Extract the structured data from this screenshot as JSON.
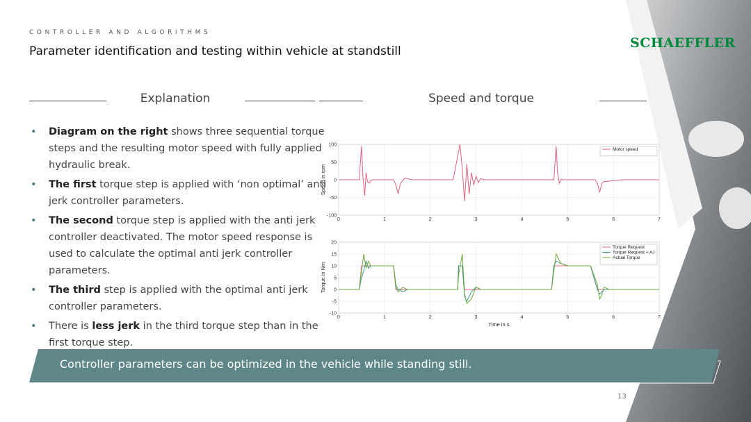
{
  "header": {
    "section": "CONTROLLER AND ALGORITHMS",
    "title": "Parameter identification and testing within vehicle at standstill",
    "logo": "SCHAEFFLER"
  },
  "left_heading": "Explanation",
  "right_heading": "Speed and torque",
  "bullets": [
    {
      "segments": [
        {
          "text": "Diagram on the right",
          "bold": true
        },
        {
          "text": " shows three sequential torque steps and the resulting motor speed with fully applied hydraulic break.",
          "bold": false
        }
      ]
    },
    {
      "segments": [
        {
          "text": "The first",
          "bold": true
        },
        {
          "text": " torque step is applied with ‘non optimal’ anti jerk controller parameters.",
          "bold": false
        }
      ]
    },
    {
      "segments": [
        {
          "text": "The second",
          "bold": true
        },
        {
          "text": " torque step is applied with the anti jerk controller deactivated. The motor speed response is used to calculate the optimal anti jerk controller parameters.",
          "bold": false
        }
      ]
    },
    {
      "segments": [
        {
          "text": "The third",
          "bold": true
        },
        {
          "text": " step is applied with the optimal anti jerk controller parameters.",
          "bold": false
        }
      ]
    },
    {
      "segments": [
        {
          "text": "There is ",
          "bold": false
        },
        {
          "text": "less jerk",
          "bold": true
        },
        {
          "text": " in the third torque step than in the first torque step.",
          "bold": false
        }
      ]
    }
  ],
  "banner": "Controller parameters can be optimized in the vehicle while standing still.",
  "page_number": "13",
  "chart_data": [
    {
      "type": "line",
      "ylabel": "Speed in rpm",
      "x": [
        0,
        0.45,
        0.5,
        0.53,
        0.57,
        0.6,
        0.63,
        0.67,
        0.7,
        0.75,
        0.8,
        1.2,
        1.25,
        1.3,
        1.35,
        1.45,
        1.6,
        2.5,
        2.65,
        2.7,
        2.75,
        2.8,
        2.85,
        2.9,
        2.95,
        3.0,
        3.05,
        3.1,
        3.2,
        3.3,
        4.7,
        4.75,
        4.78,
        4.82,
        4.86,
        4.9,
        5.0,
        5.6,
        5.65,
        5.7,
        5.75,
        5.8,
        6.0,
        6.2,
        7
      ],
      "series": [
        {
          "name": "Motor speed",
          "color": "#e2607f",
          "values": [
            0,
            0,
            95,
            10,
            -45,
            20,
            -5,
            -10,
            -3,
            0,
            0,
            0,
            -15,
            -40,
            -10,
            5,
            0,
            0,
            100,
            30,
            -60,
            45,
            -40,
            20,
            -15,
            10,
            -8,
            3,
            0,
            0,
            0,
            95,
            20,
            -10,
            2,
            0,
            0,
            0,
            -10,
            -35,
            -10,
            -5,
            -3,
            0,
            0
          ]
        }
      ],
      "xlim": [
        0,
        7
      ],
      "xticks": [
        0,
        1,
        2,
        3,
        4,
        5,
        6,
        7
      ],
      "ylim": [
        -100,
        100
      ],
      "yticks": [
        -100,
        -50,
        0,
        50,
        100
      ],
      "grid": true,
      "legend": "upper right"
    },
    {
      "type": "line",
      "ylabel": "Torque in Nm",
      "xlabel": "Time in s",
      "x": [
        0,
        0.45,
        0.5,
        0.55,
        0.6,
        0.65,
        0.7,
        0.8,
        1.2,
        1.25,
        1.3,
        1.4,
        1.5,
        2.6,
        2.62,
        2.7,
        2.75,
        2.8,
        2.9,
        3.0,
        3.1,
        3.2,
        4.65,
        4.7,
        4.75,
        4.85,
        5.0,
        5.5,
        5.65,
        5.7,
        5.75,
        5.8,
        5.9,
        6.0,
        7
      ],
      "series": [
        {
          "name": "Torque Request",
          "color": "#e2607f",
          "values": [
            0,
            0,
            10,
            10,
            10,
            10,
            10,
            10,
            10,
            0,
            0,
            0,
            0,
            0,
            10,
            10,
            0,
            0,
            0,
            0,
            0,
            0,
            0,
            10,
            10,
            10,
            10,
            10,
            0,
            0,
            0,
            0,
            0,
            0,
            0
          ]
        },
        {
          "name": "Torque Request + AJ",
          "color": "#3f9a8c",
          "values": [
            0,
            0,
            5,
            8,
            12,
            9,
            10,
            10,
            10,
            2,
            0,
            -1,
            0,
            0,
            10,
            10,
            -3,
            -5,
            -1,
            1,
            0,
            0,
            0,
            10,
            12,
            11,
            10,
            10,
            0,
            -2,
            -1,
            0,
            0,
            0,
            0
          ]
        },
        {
          "name": "Actual Torque",
          "color": "#6aa83c",
          "values": [
            0,
            0,
            8,
            15,
            9,
            12,
            10,
            10,
            10,
            1,
            -1,
            1,
            0,
            0,
            6,
            15,
            -2,
            -6,
            -4,
            1,
            0,
            0,
            0,
            8,
            15,
            11,
            10,
            10,
            2,
            -4,
            -2,
            1,
            0,
            0,
            0
          ]
        }
      ],
      "xlim": [
        0,
        7
      ],
      "xticks": [
        0,
        1,
        2,
        3,
        4,
        5,
        6,
        7
      ],
      "ylim": [
        -10,
        20
      ],
      "yticks": [
        -10,
        -5,
        0,
        5,
        10,
        15,
        20
      ],
      "grid": true,
      "legend": "upper right"
    }
  ]
}
